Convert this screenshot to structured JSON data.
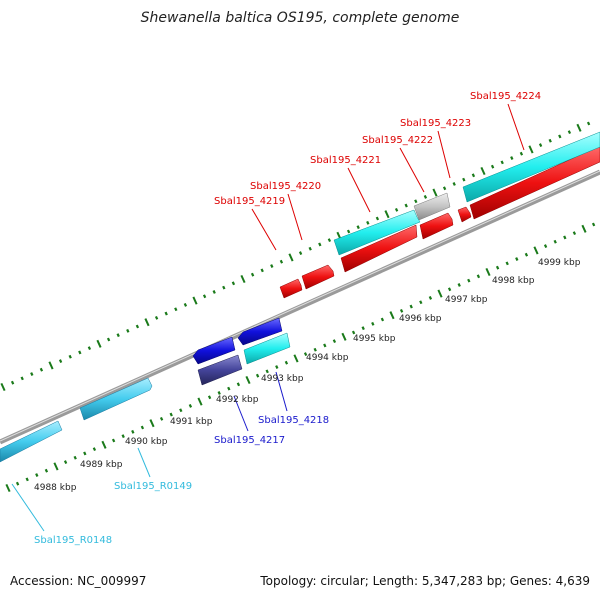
{
  "title": "Shewanella baltica OS195, complete genome",
  "footer": {
    "accession": "Accession: NC_009997",
    "topology": "Topology: circular; Length: 5,347,283 bp; Genes: 4,639"
  },
  "scale_labels": [
    "4988 kbp",
    "4989 kbp",
    "4990 kbp",
    "4991 kbp",
    "4992 kbp",
    "4993 kbp",
    "4994 kbp",
    "4995 kbp",
    "4996 kbp",
    "4997 kbp",
    "4998 kbp",
    "4999 kbp"
  ],
  "gene_labels": [
    {
      "text": "Sbal195_4224",
      "color": "#dd0000"
    },
    {
      "text": "Sbal195_4223",
      "color": "#dd0000"
    },
    {
      "text": "Sbal195_4222",
      "color": "#dd0000"
    },
    {
      "text": "Sbal195_4221",
      "color": "#dd0000"
    },
    {
      "text": "Sbal195_4220",
      "color": "#dd0000"
    },
    {
      "text": "Sbal195_4219",
      "color": "#dd0000"
    },
    {
      "text": "Sbal195_4218",
      "color": "#1a1acc"
    },
    {
      "text": "Sbal195_4217",
      "color": "#1a1acc"
    },
    {
      "text": "Sbal195_R0149",
      "color": "#33bbdd"
    },
    {
      "text": "Sbal195_R0148",
      "color": "#33bbdd"
    }
  ],
  "colors": {
    "backbone": "#8a8a8a",
    "tick": "#1a7a1a",
    "gene_red": "#ee1111",
    "gene_cyan": "#22eeee",
    "gene_blue": "#1111dd",
    "gene_navy": "#44449a",
    "gene_gray": "#c4c4c4",
    "rna_blue": "#44ccee"
  }
}
